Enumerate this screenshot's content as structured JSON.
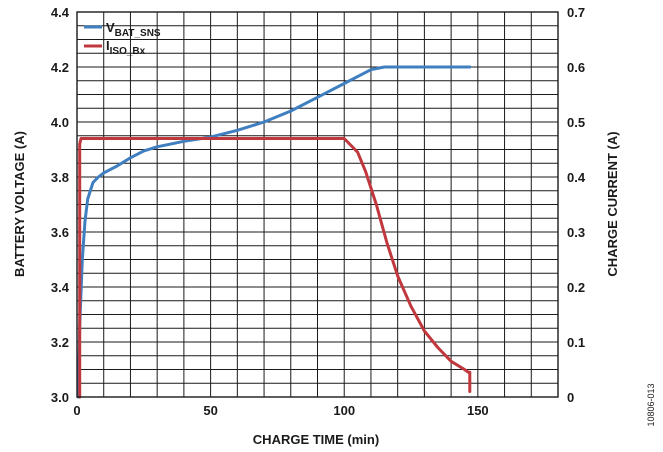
{
  "figure_id": "10806-013",
  "colors": {
    "voltage": "#3f7fc0",
    "current": "#c0383e",
    "grid": "#1a1a1a"
  },
  "chart_data": {
    "type": "line",
    "xlabel": "CHARGE TIME (min)",
    "ylabel_left": "BATTERY VOLTAGE (A)",
    "ylabel_right": "CHARGE CURRENT (A)",
    "xlim": [
      0,
      180
    ],
    "ylim_left": [
      3.0,
      4.4
    ],
    "ylim_right": [
      0,
      0.7
    ],
    "x_ticks": [
      "0",
      "50",
      "100",
      "150"
    ],
    "y_left_ticks": [
      "3.0",
      "3.2",
      "3.4",
      "3.6",
      "3.8",
      "4.0",
      "4.2",
      "4.4"
    ],
    "y_right_ticks": [
      "0",
      "0.1",
      "0.2",
      "0.3",
      "0.4",
      "0.5",
      "0.6",
      "0.7"
    ],
    "grid": true,
    "legend_position": "top-left",
    "series": [
      {
        "name": "V",
        "name_sub": "BAT_SNS",
        "axis": "left",
        "x": [
          0.5,
          1,
          2,
          3,
          4,
          6,
          8,
          10,
          15,
          20,
          25,
          30,
          40,
          50,
          60,
          70,
          80,
          90,
          100,
          105,
          110,
          115,
          120,
          130,
          140,
          147
        ],
        "y": [
          3.0,
          3.26,
          3.5,
          3.64,
          3.72,
          3.78,
          3.8,
          3.815,
          3.84,
          3.87,
          3.895,
          3.91,
          3.93,
          3.945,
          3.97,
          4.0,
          4.04,
          4.09,
          4.14,
          4.165,
          4.19,
          4.2,
          4.2,
          4.2,
          4.2,
          4.2
        ]
      },
      {
        "name": "I",
        "name_sub": "ISO_Bx",
        "axis": "right",
        "x": [
          1,
          1,
          1.5,
          50,
          95,
          98,
          100,
          102,
          105,
          108,
          112,
          116,
          120,
          125,
          130,
          135,
          140,
          145,
          146.5,
          147,
          147
        ],
        "y": [
          0.0,
          0.46,
          0.47,
          0.47,
          0.47,
          0.47,
          0.47,
          0.46,
          0.445,
          0.41,
          0.35,
          0.28,
          0.22,
          0.165,
          0.12,
          0.09,
          0.065,
          0.05,
          0.045,
          0.045,
          0.01
        ]
      }
    ]
  }
}
